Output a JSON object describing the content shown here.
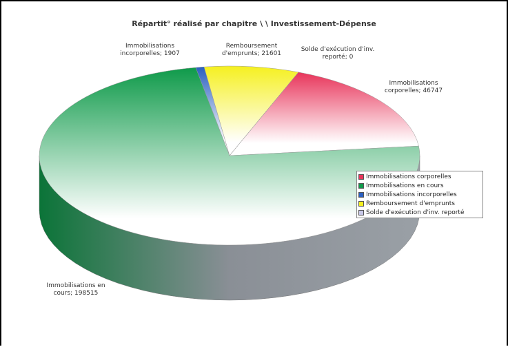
{
  "chart_data": {
    "type": "pie3d",
    "title": "Répartit° réalisé par chapitre \\ \\ Investissement-Dépense",
    "categories": [
      "Immobilisations corporelles",
      "Immobilisations en cours",
      "Immobilisations incorporelles",
      "Remboursement d'emprunts",
      "Solde d'exécution d'inv. reporté"
    ],
    "values": [
      46747,
      198515,
      1907,
      21601,
      0
    ],
    "value_labels": [
      "Immobilisations corporelles; 46747",
      "Immobilisations en cours; 198515",
      "Immobilisations incorporelles; 1907",
      "Remboursement d'emprunts; 21601",
      "Solde d'exécution d'inv. reporté; 0"
    ],
    "colors": [
      "#e8345a",
      "#0f9a4a",
      "#2a5fc0",
      "#f5f020",
      "#c8c8e8"
    ],
    "legend": "right"
  }
}
